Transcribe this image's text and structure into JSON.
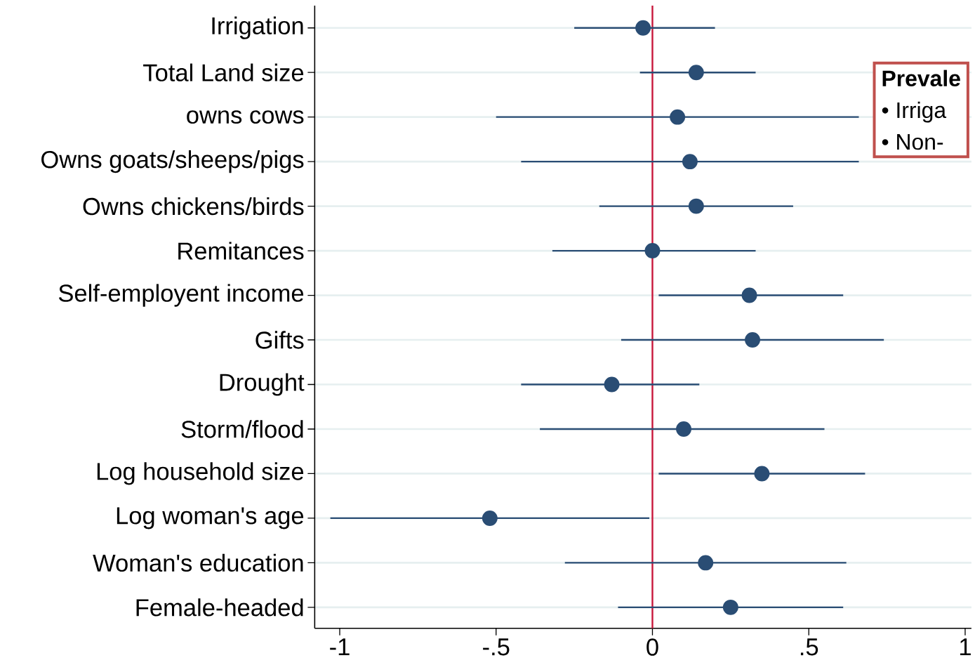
{
  "chart_data": {
    "type": "scatter",
    "orientation": "horizontal",
    "categories": [
      "Irrigation",
      "Total Land size",
      "owns cows",
      "Owns goats/sheeps/pigs",
      "Owns chickens/birds",
      "Remitances",
      "Self-employent income",
      "Gifts",
      "Drought",
      "Storm/flood",
      "Log household size",
      "Log woman's age",
      "Woman's education",
      "Female-headed"
    ],
    "values": [
      -0.03,
      0.14,
      0.08,
      0.12,
      0.14,
      0.0,
      0.31,
      0.32,
      -0.13,
      0.1,
      0.35,
      -0.52,
      0.17,
      0.25
    ],
    "errors": [
      [
        -0.25,
        0.2
      ],
      [
        -0.04,
        0.33
      ],
      [
        -0.5,
        0.66
      ],
      [
        -0.42,
        0.66
      ],
      [
        -0.17,
        0.45
      ],
      [
        -0.32,
        0.33
      ],
      [
        0.02,
        0.61
      ],
      [
        -0.1,
        0.74
      ],
      [
        -0.42,
        0.15
      ],
      [
        -0.36,
        0.55
      ],
      [
        0.02,
        0.68
      ],
      [
        -1.03,
        -0.01
      ],
      [
        -0.28,
        0.62
      ],
      [
        -0.11,
        0.61
      ]
    ],
    "color": "#2a4d74",
    "marker": "circle",
    "grid": "y",
    "xlim": [
      -1.08,
      1.02
    ],
    "xticks": [
      -1,
      {
        "value": -0.5,
        "label": "-.5"
      },
      0,
      {
        "value": 0.5,
        "label": ".5"
      },
      1
    ],
    "ref_lines": [
      {
        "axis": "x",
        "value": 0,
        "color": "#c8163a"
      }
    ],
    "annotations": [
      "Prevale",
      "• Irriga",
      "• Non-"
    ]
  }
}
